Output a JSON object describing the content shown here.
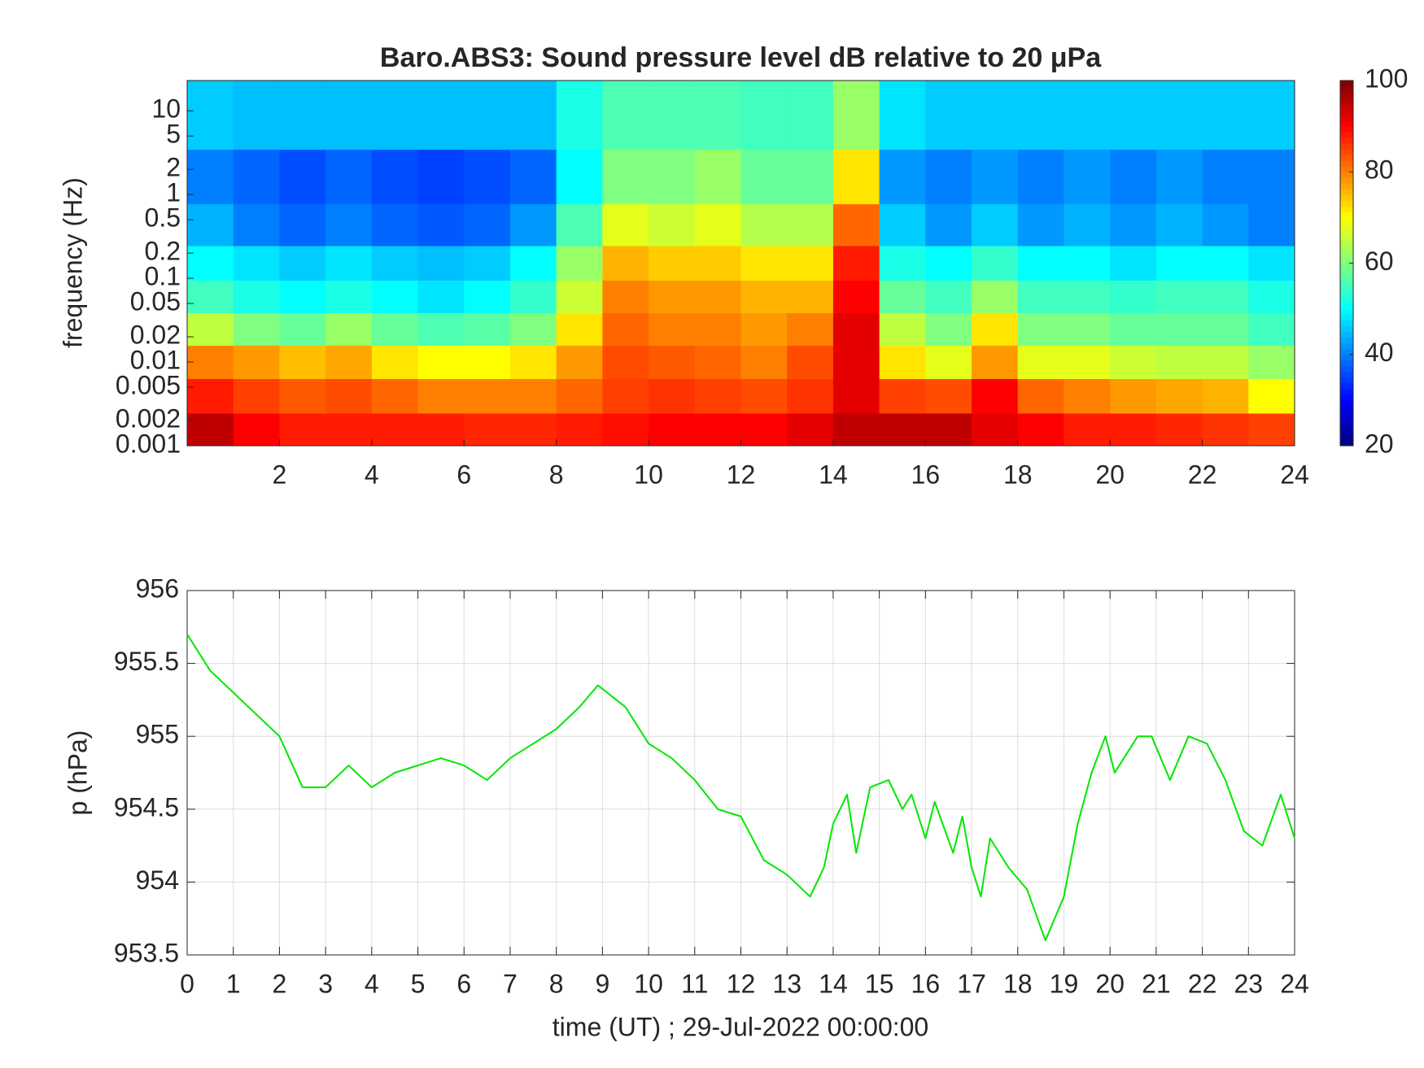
{
  "chart_data": [
    {
      "type": "heatmap",
      "title": "Baro.ABS3: Sound pressure level dB relative to 20 μPa",
      "ylabel": "frequency (Hz)",
      "x": [
        0.5,
        1.5,
        2.5,
        3.5,
        4.5,
        5.5,
        6.5,
        7.5,
        8.5,
        9.5,
        10.5,
        11.5,
        12.5,
        13.5,
        14.5,
        15.5,
        16.5,
        17.5,
        18.5,
        19.5,
        20.5,
        21.5,
        22.5,
        23.5
      ],
      "y": [
        0.0015,
        0.004,
        0.01,
        0.025,
        0.06,
        0.15,
        0.4,
        1.5,
        8
      ],
      "z": [
        [
          95,
          90,
          88,
          88,
          88,
          88,
          87,
          87,
          88,
          89,
          90,
          90,
          90,
          92,
          95,
          95,
          95,
          92,
          90,
          88,
          88,
          87,
          86,
          85
        ],
        [
          88,
          85,
          83,
          84,
          82,
          80,
          80,
          80,
          82,
          85,
          86,
          85,
          84,
          86,
          92,
          85,
          84,
          90,
          82,
          80,
          78,
          77,
          76,
          70
        ],
        [
          80,
          78,
          75,
          77,
          72,
          70,
          70,
          72,
          78,
          84,
          83,
          82,
          80,
          84,
          92,
          72,
          68,
          78,
          68,
          68,
          66,
          65,
          65,
          62
        ],
        [
          65,
          60,
          58,
          62,
          58,
          56,
          57,
          60,
          72,
          82,
          80,
          80,
          78,
          80,
          92,
          65,
          60,
          72,
          60,
          60,
          58,
          58,
          58,
          55
        ],
        [
          55,
          52,
          50,
          52,
          50,
          48,
          50,
          54,
          66,
          80,
          78,
          78,
          76,
          76,
          90,
          58,
          55,
          62,
          55,
          55,
          54,
          55,
          55,
          52
        ],
        [
          50,
          48,
          46,
          48,
          46,
          45,
          46,
          50,
          62,
          76,
          74,
          74,
          72,
          72,
          88,
          52,
          50,
          54,
          50,
          50,
          48,
          50,
          50,
          48
        ],
        [
          44,
          40,
          38,
          40,
          38,
          37,
          38,
          42,
          56,
          68,
          66,
          68,
          64,
          64,
          82,
          46,
          42,
          46,
          42,
          44,
          42,
          44,
          42,
          40
        ],
        [
          40,
          38,
          36,
          38,
          36,
          35,
          36,
          38,
          50,
          60,
          60,
          62,
          58,
          58,
          72,
          42,
          40,
          42,
          40,
          42,
          40,
          42,
          40,
          40
        ],
        [
          46,
          45,
          45,
          45,
          45,
          45,
          45,
          45,
          52,
          56,
          56,
          56,
          55,
          55,
          62,
          48,
          46,
          46,
          46,
          46,
          46,
          46,
          46,
          46
        ]
      ],
      "xlim": [
        0,
        24
      ],
      "xticks": [
        2,
        4,
        6,
        8,
        10,
        12,
        14,
        16,
        18,
        20,
        22,
        24
      ],
      "ylim": [
        0.001,
        23
      ],
      "yticks": [
        0.001,
        0.002,
        0.005,
        0.01,
        0.02,
        0.05,
        0.1,
        0.2,
        0.5,
        1,
        2,
        5,
        10
      ],
      "log_y": true,
      "colormap": "jet",
      "clim": [
        20,
        100
      ],
      "cticks": [
        20,
        40,
        60,
        80,
        100
      ]
    },
    {
      "type": "line",
      "ylabel": "p (hPa)",
      "xlabel": "time (UT) ; 29-Jul-2022 00:00:00",
      "color": "#00e600",
      "grid": true,
      "x": [
        0,
        0.5,
        1,
        1.5,
        2,
        2.5,
        3,
        3.5,
        4,
        4.5,
        5,
        5.5,
        6,
        6.5,
        7,
        7.5,
        8,
        8.5,
        8.9,
        9.5,
        10,
        10.5,
        11,
        11.5,
        12,
        12.5,
        13,
        13.5,
        13.8,
        14,
        14.3,
        14.5,
        14.8,
        15.2,
        15.5,
        15.7,
        16,
        16.2,
        16.6,
        16.8,
        17,
        17.2,
        17.4,
        17.8,
        18.2,
        18.6,
        19,
        19.3,
        19.6,
        19.9,
        20.1,
        20.6,
        20.9,
        21.3,
        21.7,
        22.1,
        22.5,
        22.9,
        23.3,
        23.7,
        24
      ],
      "values": [
        955.7,
        955.45,
        955.3,
        955.15,
        955.0,
        954.65,
        954.65,
        954.8,
        954.65,
        954.75,
        954.8,
        954.85,
        954.8,
        954.7,
        954.85,
        954.95,
        955.05,
        955.2,
        955.35,
        955.2,
        954.95,
        954.85,
        954.7,
        954.5,
        954.45,
        954.15,
        954.05,
        953.9,
        954.1,
        954.4,
        954.6,
        954.2,
        954.65,
        954.7,
        954.5,
        954.6,
        954.3,
        954.55,
        954.2,
        954.45,
        954.1,
        953.9,
        954.3,
        954.1,
        953.95,
        953.6,
        953.9,
        954.4,
        954.75,
        955.0,
        954.75,
        955.0,
        955.0,
        954.7,
        955.0,
        954.95,
        954.7,
        954.35,
        954.25,
        954.6,
        954.3
      ],
      "xlim": [
        0,
        24
      ],
      "xticks": [
        0,
        1,
        2,
        3,
        4,
        5,
        6,
        7,
        8,
        9,
        10,
        11,
        12,
        13,
        14,
        15,
        16,
        17,
        18,
        19,
        20,
        21,
        22,
        23,
        24
      ],
      "ylim": [
        953.5,
        956
      ],
      "yticks": [
        953.5,
        954,
        954.5,
        955,
        955.5,
        956
      ]
    }
  ]
}
